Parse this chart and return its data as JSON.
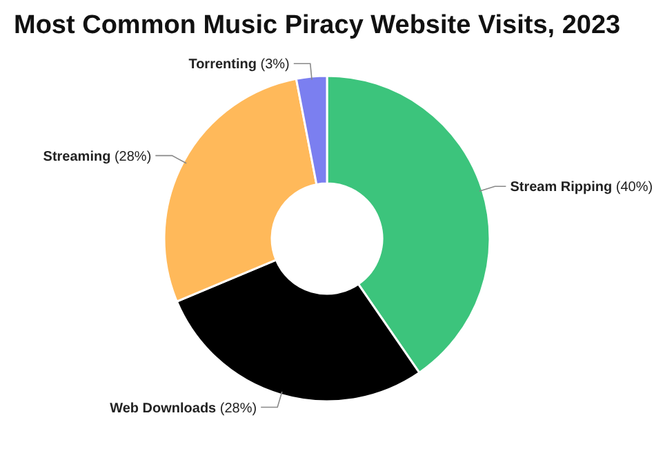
{
  "chart_data": {
    "type": "donut",
    "title": "Most Common Music Piracy Website Visits, 2023",
    "categories": [
      "Stream Ripping",
      "Web Downloads",
      "Streaming",
      "Torrenting"
    ],
    "values": [
      40,
      28,
      28,
      3
    ],
    "value_labels": [
      "(40%)",
      "(28%)",
      "(28%)",
      "(3%)"
    ],
    "colors": [
      "#3cc47c",
      "#000000",
      "#ffb95a",
      "#7b7ff0"
    ]
  }
}
